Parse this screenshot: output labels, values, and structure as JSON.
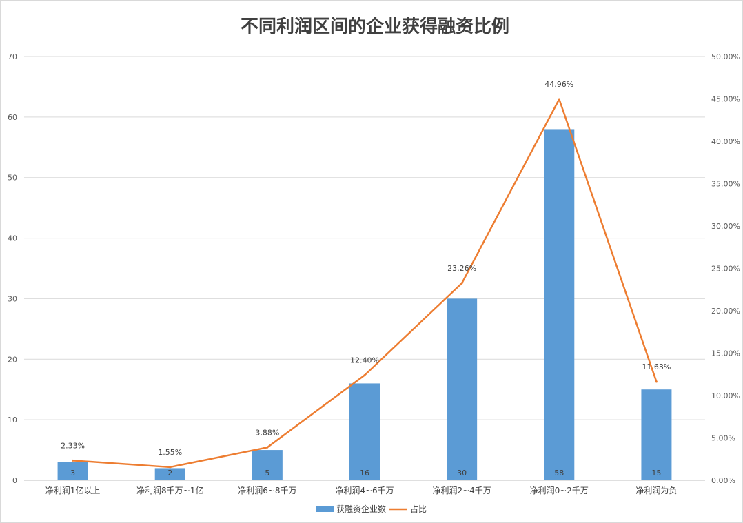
{
  "chart_data": {
    "type": "bar",
    "title": "不同利润区间的企业获得融资比例",
    "categories": [
      "净利润1亿以上",
      "净利润8千万~1亿",
      "净利润6~8千万",
      "净利润4~6千万",
      "净利润2~4千万",
      "净利润0~2千万",
      "净利润为负"
    ],
    "series": [
      {
        "name": "获融资企业数",
        "type": "bar",
        "axis": "left",
        "color": "#5B9BD5",
        "values": [
          3,
          2,
          5,
          16,
          30,
          58,
          15
        ],
        "data_labels": [
          "3",
          "2",
          "5",
          "16",
          "30",
          "58",
          "15"
        ]
      },
      {
        "name": "占比",
        "type": "line",
        "axis": "right",
        "color": "#ED7D31",
        "values": [
          2.33,
          1.55,
          3.88,
          12.4,
          23.26,
          44.96,
          11.63
        ],
        "data_labels": [
          "2.33%",
          "1.55%",
          "3.88%",
          "12.40%",
          "23.26%",
          "44.96%",
          "11.63%"
        ]
      }
    ],
    "y_left": {
      "ylim": [
        0,
        70
      ],
      "ticks": [
        "0",
        "10",
        "20",
        "30",
        "40",
        "50",
        "60",
        "70"
      ]
    },
    "y_right": {
      "ylim": [
        0,
        50
      ],
      "ticks": [
        "0.00%",
        "5.00%",
        "10.00%",
        "15.00%",
        "20.00%",
        "25.00%",
        "30.00%",
        "35.00%",
        "40.00%",
        "45.00%",
        "50.00%"
      ]
    },
    "grid": true,
    "legend": "bottom"
  }
}
